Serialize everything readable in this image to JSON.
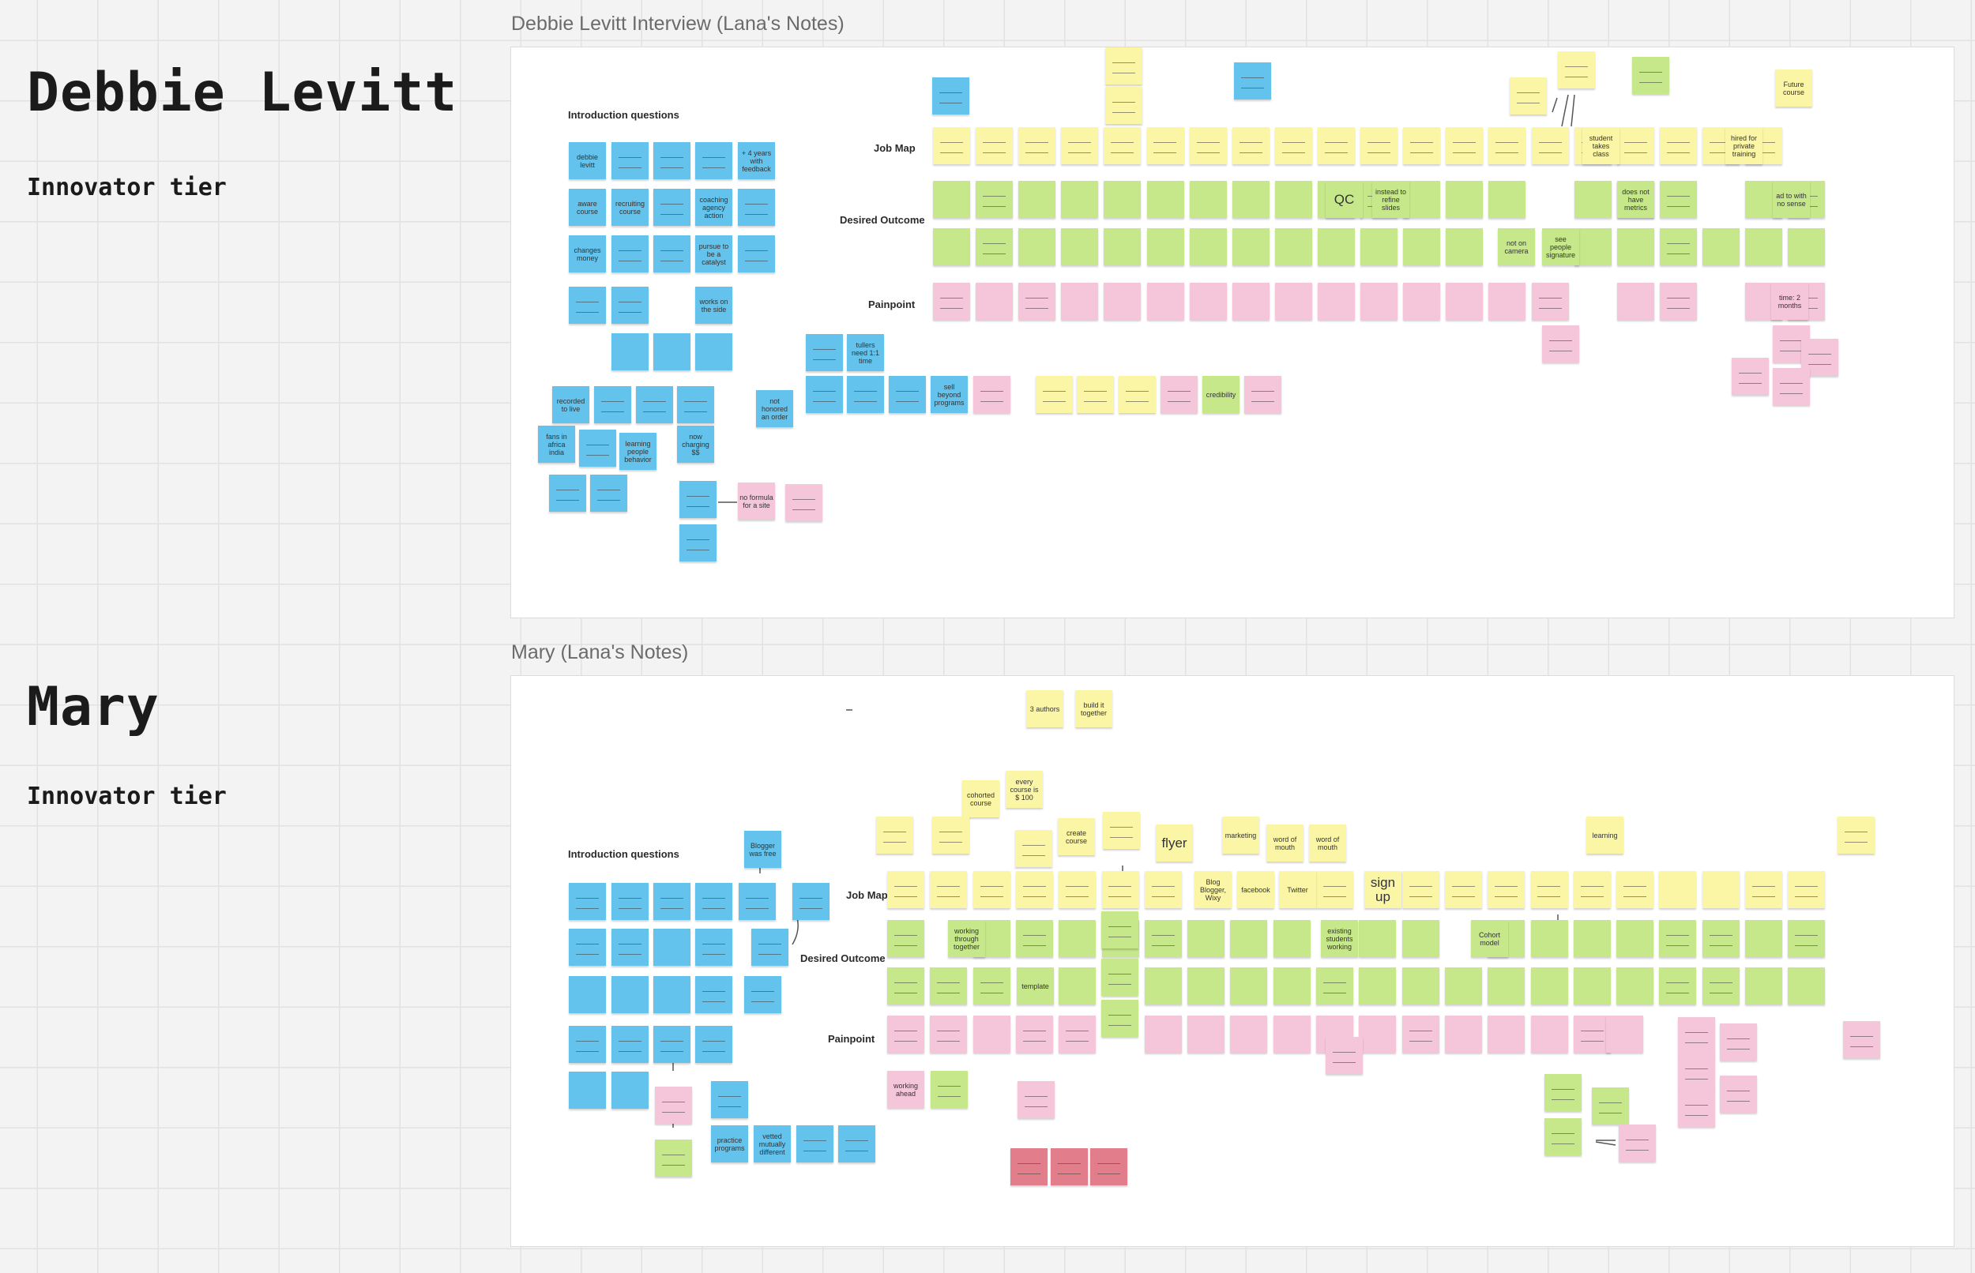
{
  "sections": [
    {
      "name": "Debbie Levitt",
      "tier": "Innovator tier",
      "frame_title": "Debbie Levitt Interview (Lana's Notes)",
      "labels": {
        "intro": "Introduction questions",
        "job_map": "Job Map",
        "desired": "Desired Outcome",
        "painpoint": "Painpoint"
      },
      "readable_notes": [
        "debbie levitt",
        "+ 4 years with feedback",
        "aware course",
        "recruiting course",
        "coaching agency action",
        "changes money",
        "pursue to be a catalyst",
        "works on the side",
        "recorded to live",
        "fans in africa india",
        "learning people behavior",
        "now charging $$",
        "not honored an order",
        "tullers need 1:1 time",
        "sell beyond programs",
        "Future course",
        "student takes class",
        "hired for private training",
        "QC",
        "instead to refine slides",
        "does not have metrics",
        "ad to with no sense",
        "not on camera",
        "see people signature",
        "no formula for a site",
        "credibility",
        "time: 2 months"
      ]
    },
    {
      "name": "Mary",
      "tier": "Innovator tier",
      "frame_title": "Mary (Lana's Notes)",
      "labels": {
        "intro": "Introduction questions",
        "job_map": "Job Map",
        "desired": "Desired Outcome",
        "painpoint": "Painpoint"
      },
      "readable_notes": [
        "3 authors",
        "build it together",
        "Blogger was free",
        "cohorted course",
        "every course is $ 100",
        "create course",
        "flyer",
        "marketing",
        "word of mouth",
        "word of mouth",
        "learning",
        "Blog Blogger, Wixy",
        "facebook",
        "Twitter",
        "sign up",
        "working through together",
        "existing students working",
        "Cohort model",
        "template",
        "working ahead",
        "practice programs",
        "vetted mutually different"
      ]
    }
  ],
  "colors": {
    "blue": "#63c3ec",
    "yellow": "#fbf6a6",
    "green": "#c6e88a",
    "pink": "#f5c5d9",
    "red": "#e27e8c"
  }
}
